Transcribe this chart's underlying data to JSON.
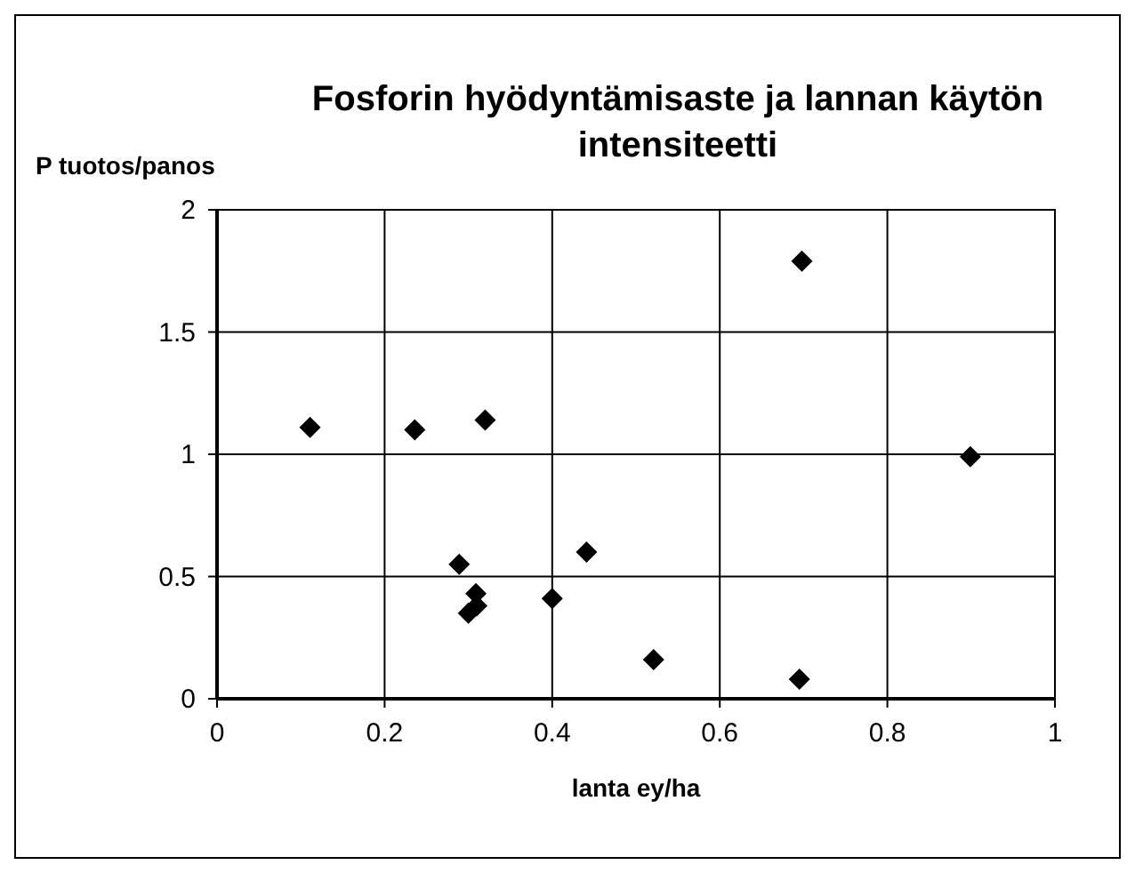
{
  "chart_data": {
    "type": "scatter",
    "title": "Fosforin hyödyntämisaste ja lannan käytön intensiteetti",
    "xlabel": "lanta ey/ha",
    "ylabel": "P tuotos/panos",
    "x": [
      0.111,
      0.236,
      0.32,
      0.698,
      0.899,
      0.289,
      0.309,
      0.3,
      0.31,
      0.4,
      0.441,
      0.521,
      0.695
    ],
    "values": [
      1.11,
      1.1,
      1.14,
      1.79,
      0.99,
      0.55,
      0.43,
      0.35,
      0.38,
      0.41,
      0.6,
      0.16,
      0.08
    ],
    "color": "#000000",
    "marker": "diamond",
    "xlim": [
      0,
      1
    ],
    "xticks": [
      0,
      0.2,
      0.4,
      0.6,
      0.8,
      1
    ],
    "ylim": [
      0,
      2
    ],
    "yticks": [
      0,
      0.5,
      1,
      1.5,
      2
    ],
    "grid": true
  }
}
